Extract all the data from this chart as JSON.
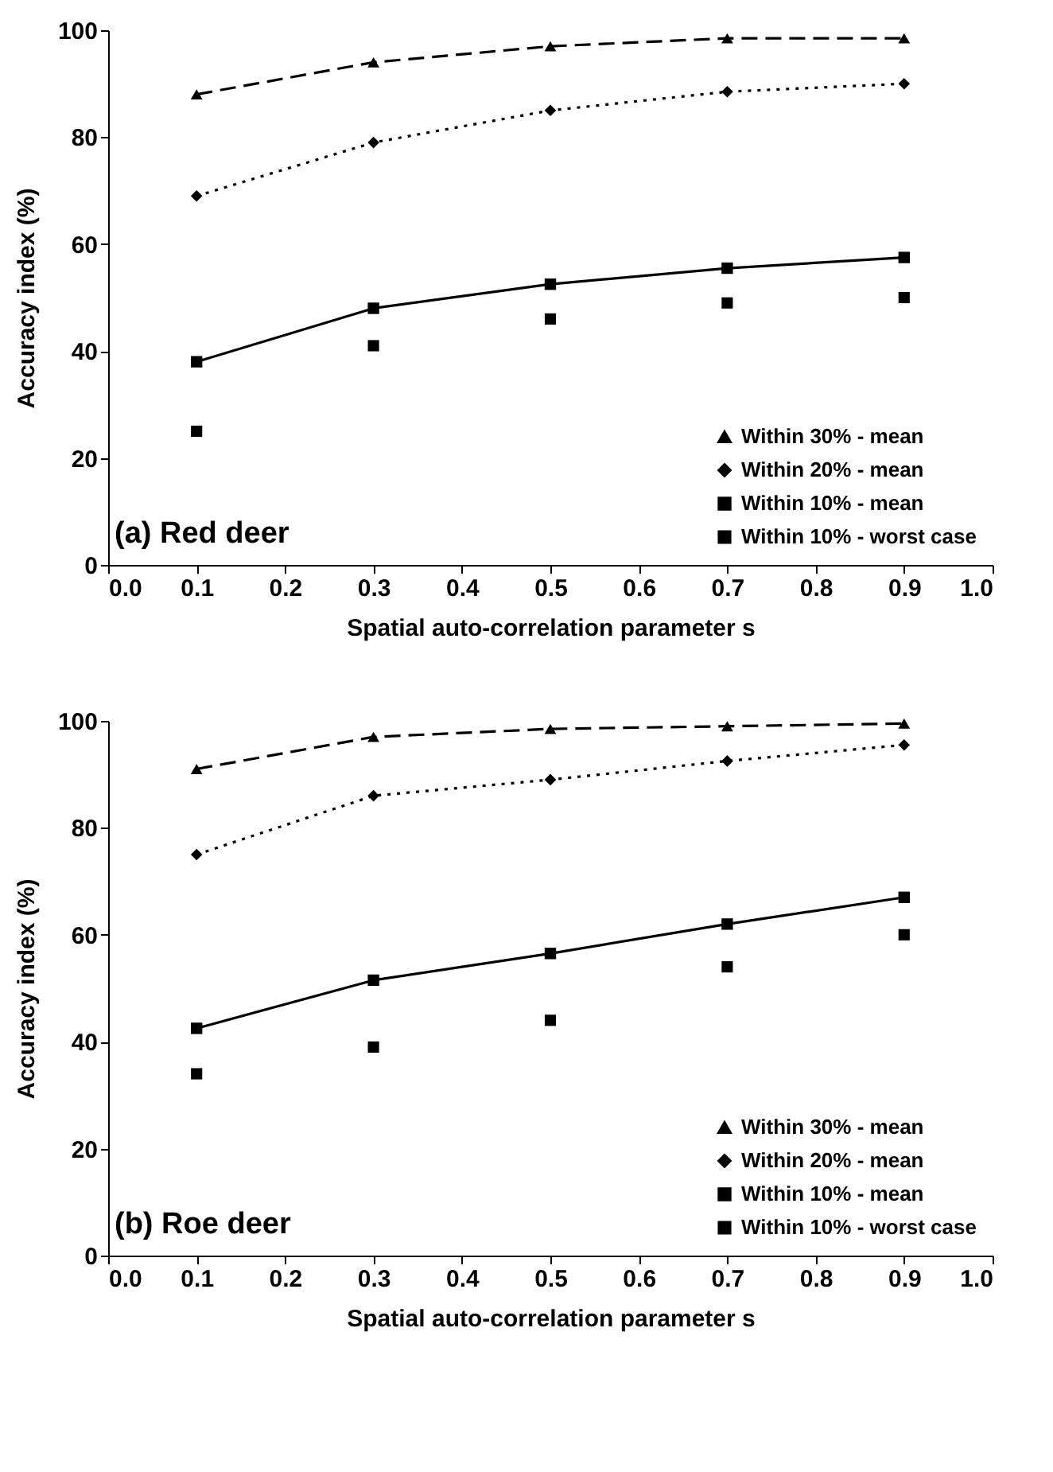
{
  "chart_data": [
    {
      "type": "line",
      "xlabel": "Spatial auto-correlation parameter s",
      "ylabel": "Accuracy index (%)",
      "annotations": [
        "(a) Red deer"
      ],
      "x": [
        0.1,
        0.3,
        0.5,
        0.7,
        0.9
      ],
      "xlim": [
        0,
        1
      ],
      "xticks": [
        {
          "value": 0,
          "label": "0.0"
        },
        {
          "value": 0.1,
          "label": "0.1"
        },
        {
          "value": 0.2,
          "label": "0.2"
        },
        {
          "value": 0.3,
          "label": "0.3"
        },
        {
          "value": 0.4,
          "label": "0.4"
        },
        {
          "value": 0.5,
          "label": "0.5"
        },
        {
          "value": 0.6,
          "label": "0.6"
        },
        {
          "value": 0.7,
          "label": "0.7"
        },
        {
          "value": 0.8,
          "label": "0.8"
        },
        {
          "value": 0.9,
          "label": "0.9"
        },
        {
          "value": 1,
          "label": "1.0"
        }
      ],
      "ylim": [
        0,
        100
      ],
      "yticks": [
        0,
        20,
        40,
        60,
        80,
        100
      ],
      "grid": false,
      "legend": "bottom right",
      "series": [
        {
          "name": "Within 30% - mean",
          "color": "#000000",
          "marker": "triangle",
          "line_style": "dashed",
          "values": [
            88,
            94,
            97,
            98.5,
            98.5
          ]
        },
        {
          "name": "Within 20% - mean",
          "color": "#000000",
          "marker": "diamond",
          "line_style": "dotted",
          "values": [
            69,
            79,
            85,
            88.5,
            90
          ]
        },
        {
          "name": "Within 10% - mean",
          "color": "#000000",
          "marker": "square",
          "line_style": "solid",
          "values": [
            38,
            48,
            52.5,
            55.5,
            57.5
          ]
        },
        {
          "name": "Within 10% - worst case",
          "type": "scatter",
          "color": "#000000",
          "marker": "square",
          "values": [
            25,
            41,
            46,
            49,
            50
          ]
        }
      ]
    },
    {
      "type": "line",
      "xlabel": "Spatial auto-correlation parameter s",
      "ylabel": "Accuracy index (%)",
      "annotations": [
        "(b) Roe deer"
      ],
      "x": [
        0.1,
        0.3,
        0.5,
        0.7,
        0.9
      ],
      "xlim": [
        0,
        1
      ],
      "xticks": [
        {
          "value": 0,
          "label": "0.0"
        },
        {
          "value": 0.1,
          "label": "0.1"
        },
        {
          "value": 0.2,
          "label": "0.2"
        },
        {
          "value": 0.3,
          "label": "0.3"
        },
        {
          "value": 0.4,
          "label": "0.4"
        },
        {
          "value": 0.5,
          "label": "0.5"
        },
        {
          "value": 0.6,
          "label": "0.6"
        },
        {
          "value": 0.7,
          "label": "0.7"
        },
        {
          "value": 0.8,
          "label": "0.8"
        },
        {
          "value": 0.9,
          "label": "0.9"
        },
        {
          "value": 1,
          "label": "1.0"
        }
      ],
      "ylim": [
        0,
        100
      ],
      "yticks": [
        0,
        20,
        40,
        60,
        80,
        100
      ],
      "grid": false,
      "legend": "bottom right",
      "series": [
        {
          "name": "Within 30% - mean",
          "color": "#000000",
          "marker": "triangle",
          "line_style": "dashed",
          "values": [
            91,
            97,
            98.5,
            99,
            99.5
          ]
        },
        {
          "name": "Within 20% - mean",
          "color": "#000000",
          "marker": "diamond",
          "line_style": "dotted",
          "values": [
            75,
            86,
            89,
            92.5,
            95.5
          ]
        },
        {
          "name": "Within 10% - mean",
          "color": "#000000",
          "marker": "square",
          "line_style": "solid",
          "values": [
            42.5,
            51.5,
            56.5,
            62,
            67
          ]
        },
        {
          "name": "Within 10% - worst case",
          "type": "scatter",
          "color": "#000000",
          "marker": "square",
          "values": [
            34,
            39,
            44,
            54,
            60
          ]
        }
      ]
    }
  ]
}
